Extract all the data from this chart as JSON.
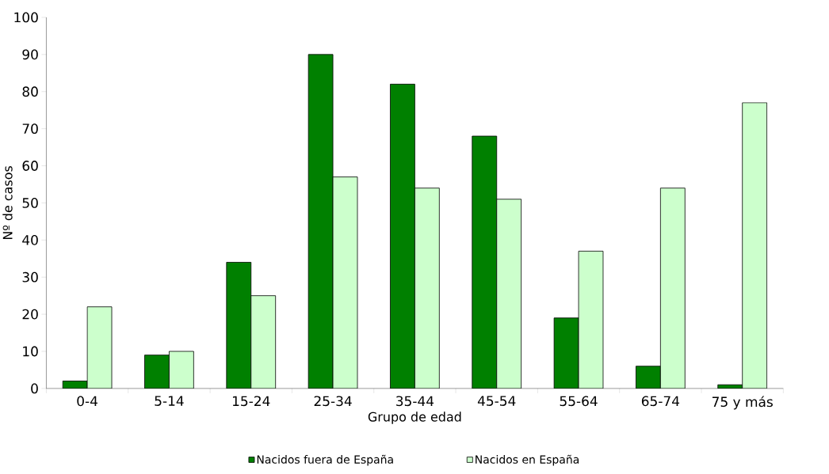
{
  "chart_data": {
    "type": "bar",
    "xlabel": "Grupo de edad",
    "ylabel": "Nº de casos",
    "categories": [
      "0-4",
      "5-14",
      "15-24",
      "25-34",
      "35-44",
      "45-54",
      "55-64",
      "65-74",
      "75 y más"
    ],
    "series": [
      {
        "name": "Nacidos fuera de España",
        "color": "#008000",
        "values": [
          2,
          9,
          34,
          90,
          82,
          68,
          19,
          6,
          1
        ]
      },
      {
        "name": "Nacidos en España",
        "color": "#ccffcc",
        "values": [
          22,
          10,
          25,
          57,
          54,
          51,
          37,
          54,
          77
        ]
      }
    ],
    "ylim": [
      0,
      100
    ],
    "yticks": [
      0,
      10,
      20,
      30,
      40,
      50,
      60,
      70,
      80,
      90,
      100
    ],
    "grid": false,
    "legend": "bottom"
  }
}
